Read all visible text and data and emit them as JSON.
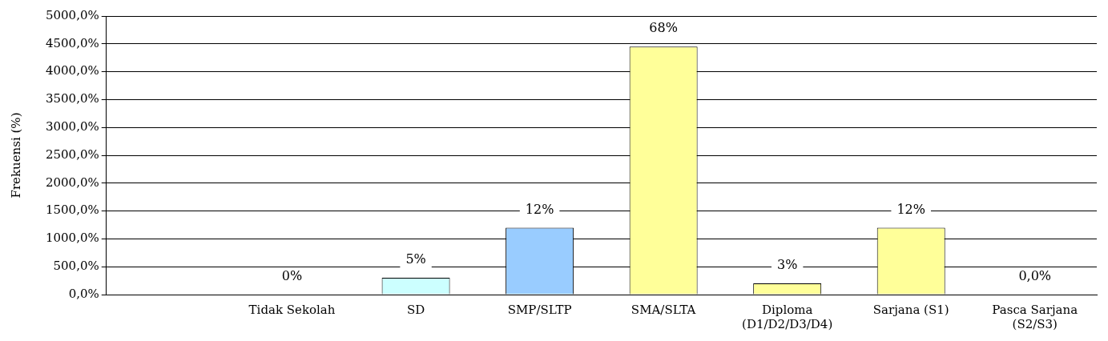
{
  "chart_data": {
    "type": "bar",
    "ylabel": "Frekuensi (%)",
    "categories": [
      null,
      "Tidak Sekolah",
      "SD",
      "SMP/SLTP",
      "SMA/SLTA",
      "Diploma\n(D1/D2/D3/D4)",
      "Sarjana (S1)",
      "Pasca Sarjana\n(S2/S3)"
    ],
    "values": [
      null,
      0,
      300,
      1200,
      4450,
      200,
      1200,
      0
    ],
    "colors": [
      "#ffff99",
      "#ffff99",
      "#ccffff",
      "#99ccff",
      "#ffff99",
      "#ffff99",
      "#ffff99",
      "#ffff99"
    ],
    "annotations": [
      {
        "text": "0%",
        "x": "Tidak Sekolah",
        "y": 0
      },
      {
        "text": "5%",
        "x": "SD",
        "y": 300
      },
      {
        "text": "12%",
        "x": "SMP/SLTP",
        "y": 1200
      },
      {
        "text": "68%",
        "x": "SMA/SLTA",
        "y": 4450
      },
      {
        "text": "3%",
        "x": "Diploma\n(D1/D2/D3/D4)",
        "y": 200
      },
      {
        "text": "12%",
        "x": "Sarjana (S1)",
        "y": 1200
      },
      {
        "text": "0,0%",
        "x": "Pasca Sarjana\n(S2/S3)",
        "y": 0
      }
    ],
    "ylim": [
      0,
      5000
    ],
    "yticks": [
      {
        "value": 0,
        "label": "0,0%"
      },
      {
        "value": 500,
        "label": "500,0%"
      },
      {
        "value": 1000,
        "label": "1000,0%"
      },
      {
        "value": 1500,
        "label": "1500,0%"
      },
      {
        "value": 2000,
        "label": "2000,0%"
      },
      {
        "value": 2500,
        "label": "2500,0%"
      },
      {
        "value": 3000,
        "label": "3000,0%"
      },
      {
        "value": 3500,
        "label": "3500,0%"
      },
      {
        "value": 4000,
        "label": "4000,0%"
      },
      {
        "value": 4500,
        "label": "4500,0%"
      },
      {
        "value": 5000,
        "label": "5000,0%"
      }
    ],
    "grid": "y",
    "legend": false
  }
}
